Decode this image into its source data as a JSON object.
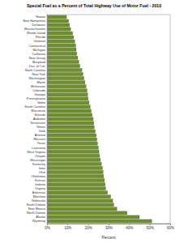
{
  "chart_data": {
    "type": "bar",
    "title": "Special Fuel as a Percent of Total Highway Use of Motor Fuel - 2010",
    "orientation": "horizontal",
    "x_label": "Percent",
    "categories": [
      "Hawaii",
      "New Hampshire",
      "Delaware",
      "Massachusetts",
      "Rhode Island",
      "Florida",
      "Vermont",
      "Connecticut",
      "Michigan",
      "California",
      "New Jersey",
      "Maryland",
      "Dist. of Col.",
      "North Carolina",
      "New York",
      "Washington",
      "Maine",
      "Minnesota",
      "Colorado",
      "Georgia",
      "Pennsylvania",
      "Idaho",
      "South Carolina",
      "Wisconsin",
      "Nevada",
      "Alabama",
      "Tennessee",
      "Illinois",
      "Utah",
      "Arizona",
      "Missouri",
      "Texas",
      "Louisiana",
      "West Virginia",
      "Oregon",
      "Mississippi",
      "Kentucky",
      "Iowa",
      "Ohio",
      "Oklahoma",
      "Kansas",
      "Indiana",
      "Virginia",
      "Arkansas",
      "Montana",
      "Nebraska",
      "South Dakota",
      "New Mexico",
      "North Dakota",
      "Alaska",
      "Wyoming"
    ],
    "values": [
      9.5,
      10.5,
      11,
      11.5,
      12.5,
      13,
      13.5,
      14,
      14.2,
      14.5,
      15,
      15.5,
      16,
      17,
      17.5,
      18,
      18.5,
      19,
      19.5,
      19.8,
      20,
      20.5,
      21,
      21.5,
      22,
      22.5,
      22.8,
      23,
      23.5,
      24,
      24.3,
      24.6,
      25,
      25.3,
      25.6,
      26,
      26.5,
      27,
      27.3,
      27.6,
      28,
      28.3,
      28.6,
      29.5,
      31,
      32,
      32.5,
      34,
      39,
      45,
      51
    ],
    "color": "#6f8f2f",
    "xlim": [
      0,
      60
    ],
    "xticks": [
      {
        "value": 0,
        "label": "0%"
      },
      {
        "value": 10,
        "label": "10%"
      },
      {
        "value": 20,
        "label": "20%"
      },
      {
        "value": 30,
        "label": "30%"
      },
      {
        "value": 40,
        "label": "40%"
      },
      {
        "value": 50,
        "label": "50%"
      },
      {
        "value": 60,
        "label": "60%"
      }
    ],
    "grid": false
  }
}
